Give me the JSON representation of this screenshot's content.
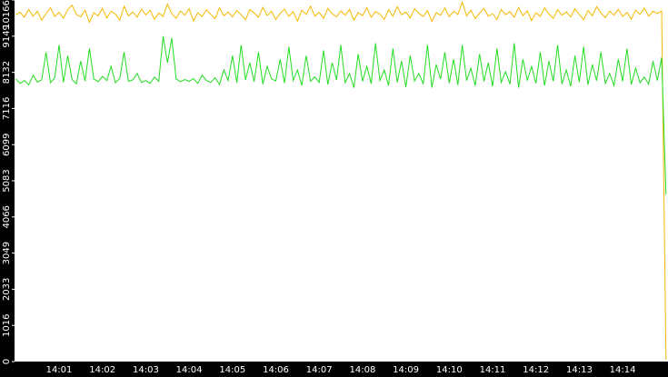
{
  "chart_data": {
    "type": "line",
    "categories": [
      null,
      null,
      null,
      null,
      null,
      null,
      null,
      null,
      null,
      null,
      "14:01",
      null,
      null,
      null,
      null,
      null,
      null,
      null,
      null,
      null,
      "14:02",
      null,
      null,
      null,
      null,
      null,
      null,
      null,
      null,
      null,
      "14:03",
      null,
      null,
      null,
      null,
      null,
      null,
      null,
      null,
      null,
      "14:04",
      null,
      null,
      null,
      null,
      null,
      null,
      null,
      null,
      null,
      "14:05",
      null,
      null,
      null,
      null,
      null,
      null,
      null,
      null,
      null,
      "14:06",
      null,
      null,
      null,
      null,
      null,
      null,
      null,
      null,
      null,
      "14:07",
      null,
      null,
      null,
      null,
      null,
      null,
      null,
      null,
      null,
      "14:08",
      null,
      null,
      null,
      null,
      null,
      null,
      null,
      null,
      null,
      "14:09",
      null,
      null,
      null,
      null,
      null,
      null,
      null,
      null,
      null,
      "14:10",
      null,
      null,
      null,
      null,
      null,
      null,
      null,
      null,
      null,
      "14:11",
      null,
      null,
      null,
      null,
      null,
      null,
      null,
      null,
      null,
      "14:12",
      null,
      null,
      null,
      null,
      null,
      null,
      null,
      null,
      null,
      "14:13",
      null,
      null,
      null,
      null,
      null,
      null,
      null,
      null,
      null,
      "14:14",
      null,
      null,
      null,
      null,
      null,
      null,
      null,
      null,
      null,
      null
    ],
    "series": [
      {
        "color": "#f5b800",
        "values": [
          9750,
          9820,
          9680,
          9900,
          9710,
          9850,
          9600,
          9780,
          9950,
          9700,
          9820,
          9650,
          9900,
          10020,
          9760,
          9690,
          9880,
          9540,
          9810,
          9720,
          9930,
          9660,
          9850,
          9770,
          9600,
          9990,
          9720,
          9830,
          9680,
          9910,
          9750,
          9880,
          9620,
          9800,
          9700,
          10050,
          9780,
          9650,
          9860,
          9740,
          9920,
          9580,
          9810,
          9700,
          9890,
          9760,
          9640,
          9950,
          9720,
          9830,
          9690,
          9870,
          9750,
          9610,
          9900,
          9800,
          9680,
          9960,
          9730,
          9850,
          9620,
          9790,
          9910,
          9700,
          9840,
          9570,
          9880,
          9760,
          9990,
          9710,
          9820,
          9650,
          9930,
          9780,
          9690,
          9860,
          9740,
          9900,
          9600,
          9810,
          9730,
          9950,
          9680,
          9840,
          9770,
          9620,
          9890,
          9710,
          9980,
          9750,
          9830,
          9660,
          9920,
          9790,
          9700,
          9870,
          9560,
          9810,
          9740,
          9940,
          9690,
          9850,
          9760,
          10110,
          9720,
          9880,
          9640,
          9800,
          9930,
          9710,
          9780,
          9620,
          9900,
          9750,
          9840,
          9680,
          9960,
          9730,
          9860,
          9590,
          9810,
          9700,
          9950,
          9770,
          9650,
          9890,
          9740,
          9830,
          9690,
          9920,
          9760,
          9610,
          9870,
          9720,
          9980,
          9800,
          9670,
          9850,
          9740,
          9900,
          9700,
          9820,
          9630,
          9880,
          9760,
          9940,
          9710,
          9850,
          9780,
          9860,
          50
        ]
      },
      {
        "color": "#22dd22",
        "values": [
          7950,
          7820,
          7900,
          7780,
          8050,
          7860,
          7920,
          8700,
          7840,
          7980,
          8900,
          7850,
          8600,
          7930,
          7810,
          8450,
          7890,
          8800,
          7950,
          7870,
          8020,
          7900,
          8300,
          7840,
          7960,
          8700,
          7880,
          7920,
          8100,
          7850,
          7900,
          7820,
          8000,
          7880,
          9150,
          8400,
          9100,
          7950,
          7870,
          7930,
          7880,
          7960,
          7820,
          8050,
          7900,
          7850,
          7980,
          7790,
          8200,
          7900,
          8600,
          7840,
          8900,
          7920,
          8400,
          7870,
          8700,
          7800,
          8300,
          7950,
          7890,
          8500,
          7830,
          8850,
          7900,
          8200,
          7760,
          8600,
          7880,
          8000,
          7850,
          8750,
          7790,
          8400,
          7920,
          8900,
          7840,
          8100,
          7700,
          8650,
          7880,
          8300,
          7810,
          8950,
          7900,
          8200,
          7760,
          8800,
          7850,
          8450,
          7720,
          8600,
          7890,
          8100,
          7800,
          8900,
          7700,
          8350,
          7940,
          8700,
          7830,
          8500,
          7780,
          8900,
          7900,
          8250,
          7760,
          8650,
          7880,
          8400,
          7740,
          8800,
          7850,
          8150,
          7800,
          8950,
          7700,
          8500,
          7900,
          8300,
          7820,
          8700,
          7760,
          8450,
          7880,
          8900,
          7800,
          8200,
          7740,
          8600,
          7860,
          8850,
          7780,
          8350,
          7900,
          8700,
          7820,
          8100,
          7760,
          8500,
          7880,
          8800,
          7790,
          8250,
          7840,
          8000,
          7800,
          8450,
          7900,
          8550,
          4700
        ]
      }
    ],
    "ylim": [
      0,
      10166
    ],
    "yticks": [
      0,
      1016,
      2033,
      3049,
      4066,
      5083,
      6099,
      7116,
      8132,
      9149,
      10166
    ]
  }
}
